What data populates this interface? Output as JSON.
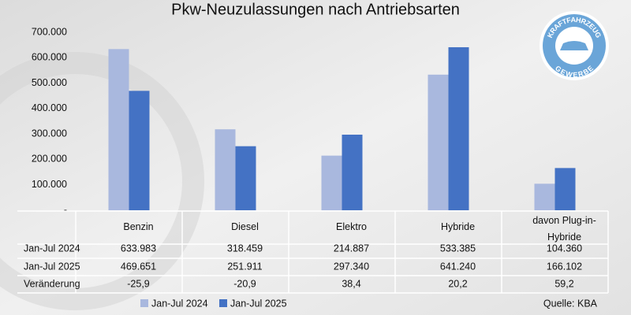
{
  "chart_data": {
    "type": "bar",
    "title": "Pkw-Neuzulassungen nach Antriebsarten",
    "categories": [
      "Benzin",
      "Diesel",
      "Elektro",
      "Hybride",
      "davon Plug-in-Hybride"
    ],
    "series": [
      {
        "name": "Jan-Jul 2024",
        "color": "#a9b8de",
        "values": [
          633983,
          318459,
          214887,
          533385,
          104360
        ],
        "value_labels": [
          "633.983",
          "318.459",
          "214.887",
          "533.385",
          "104.360"
        ]
      },
      {
        "name": "Jan-Jul 2025",
        "color": "#4472c4",
        "values": [
          469651,
          251911,
          297340,
          641240,
          166102
        ],
        "value_labels": [
          "469.651",
          "251.911",
          "297.340",
          "641.240",
          "166.102"
        ]
      }
    ],
    "change": {
      "label": "Veränderung",
      "cells": [
        "-25,9",
        "-20,9",
        "38,4",
        "20,2",
        "59,2"
      ]
    },
    "ylim": [
      0,
      700000
    ],
    "yticks": [
      {
        "value": 0,
        "label": "-"
      },
      {
        "value": 100000,
        "label": "100.000"
      },
      {
        "value": 200000,
        "label": "200.000"
      },
      {
        "value": 300000,
        "label": "300.000"
      },
      {
        "value": 400000,
        "label": "400.000"
      },
      {
        "value": 500000,
        "label": "500.000"
      },
      {
        "value": 600000,
        "label": "600.000"
      },
      {
        "value": 700000,
        "label": "700.000"
      }
    ],
    "grid": false,
    "source": "Quelle: KBA",
    "logo": {
      "top": "KRAFTFAHRZEUG",
      "bottom": "GEWERBE"
    }
  }
}
